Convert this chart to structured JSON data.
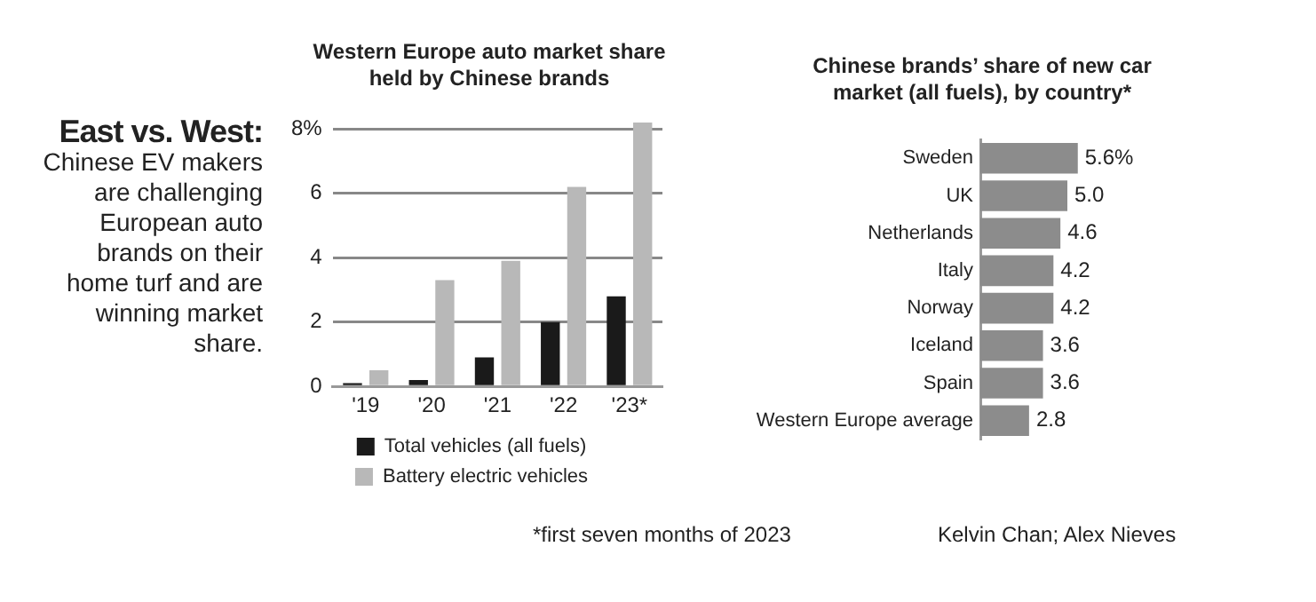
{
  "chart_data": [
    {
      "type": "other",
      "title": "East vs. West:",
      "annotations": [
        "Chinese EV makers are challenging European auto brands on their home turf and are winning market share.",
        "Kelvin Chan; Alex Nieves"
      ]
    },
    {
      "type": "bar",
      "title": "Western Europe auto market share held by Chinese brands",
      "categories": [
        "'19",
        "'20",
        "'21",
        "'22",
        "'23*"
      ],
      "series": [
        {
          "name": "Total vehicles (all fuels)",
          "color": "#1a1a1a",
          "values": [
            0.1,
            0.2,
            0.9,
            2.0,
            2.8
          ]
        },
        {
          "name": "Battery electric vehicles",
          "color": "#b8b8b8",
          "values": [
            0.5,
            3.3,
            3.9,
            6.2,
            8.2
          ]
        }
      ],
      "ylim": [
        0,
        8.3
      ],
      "yticks": [
        0,
        2,
        4,
        6,
        {
          "value": 8,
          "label": "8%"
        }
      ],
      "grid": "y",
      "legend": "bottom",
      "annotations": [
        "*first seven months of 2023"
      ]
    },
    {
      "type": "bar",
      "orientation": "horizontal",
      "title": "Chinese brands’ share of new car market (all fuels), by country*",
      "categories": [
        "Sweden",
        "UK",
        "Netherlands",
        "Italy",
        "Norway",
        "Iceland",
        "Spain",
        "Western Europe average"
      ],
      "values": [
        5.6,
        5.0,
        4.6,
        4.2,
        4.2,
        3.6,
        3.6,
        2.8
      ],
      "color": "#8c8c8c",
      "value_labels": [
        "5.6%",
        "5.0",
        "4.6",
        "4.2",
        "4.2",
        "3.6",
        "3.6",
        "2.8"
      ]
    }
  ]
}
